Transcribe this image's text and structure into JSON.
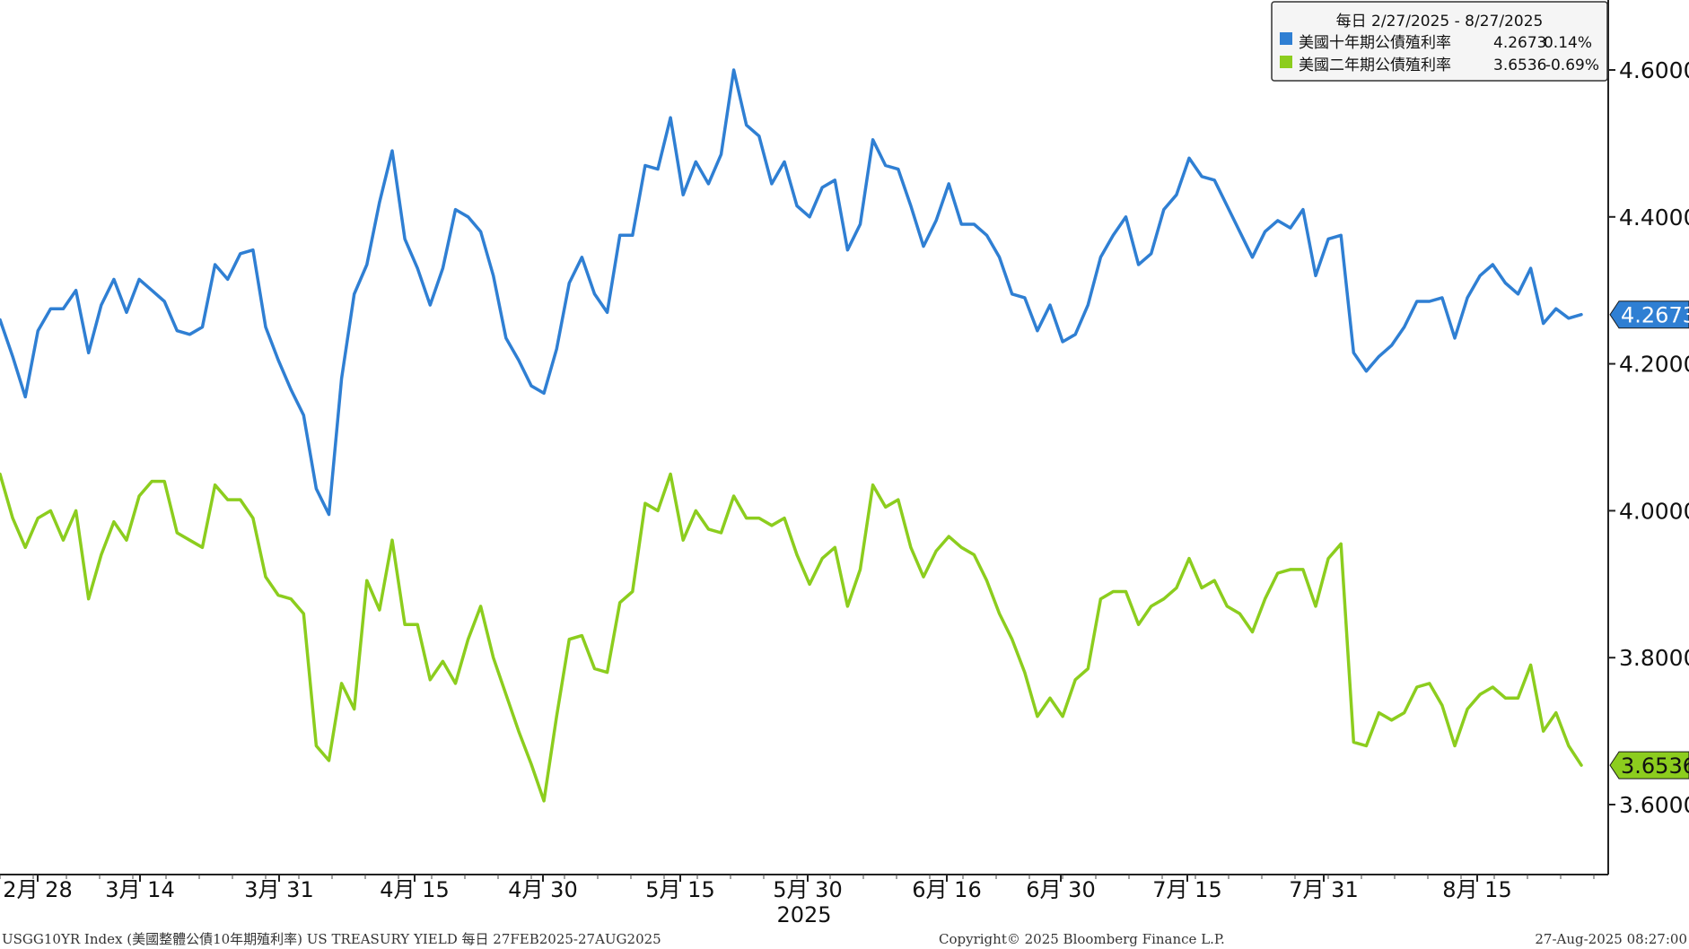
{
  "chart_data": {
    "type": "line",
    "title": "",
    "xlabel": "",
    "ylabel": "",
    "ylim": [
      3.5,
      4.72
    ],
    "y_ticks": [
      "3.6000",
      "3.8000",
      "4.0000",
      "4.2000",
      "4.4000",
      "4.6000"
    ],
    "x_ticks": [
      "2月 28",
      "3月 14",
      "3月 31",
      "4月 15",
      "4月 30",
      "5月 15",
      "5月 30",
      "6月 16",
      "6月 30",
      "7月 15",
      "7月 31",
      "8月 15"
    ],
    "x_year": "2025",
    "legend_position": "top-right",
    "series": [
      {
        "name": "美國十年期公債殖利率",
        "color": "#2f7fd3",
        "last_value": "4.2673",
        "change": "0.14%",
        "values": [
          4.26,
          4.21,
          4.155,
          4.245,
          4.275,
          4.275,
          4.3,
          4.215,
          4.28,
          4.315,
          4.27,
          4.315,
          4.3,
          4.285,
          4.245,
          4.24,
          4.25,
          4.335,
          4.315,
          4.35,
          4.355,
          4.25,
          4.205,
          4.165,
          4.13,
          4.03,
          3.995,
          4.18,
          4.295,
          4.335,
          4.42,
          4.49,
          4.37,
          4.33,
          4.28,
          4.33,
          4.41,
          4.4,
          4.38,
          4.32,
          4.235,
          4.205,
          4.17,
          4.16,
          4.22,
          4.31,
          4.345,
          4.295,
          4.27,
          4.375,
          4.375,
          4.47,
          4.465,
          4.535,
          4.43,
          4.475,
          4.445,
          4.485,
          4.6,
          4.525,
          4.51,
          4.445,
          4.475,
          4.415,
          4.4,
          4.44,
          4.45,
          4.355,
          4.39,
          4.505,
          4.47,
          4.465,
          4.415,
          4.36,
          4.395,
          4.445,
          4.39,
          4.39,
          4.375,
          4.345,
          4.295,
          4.29,
          4.245,
          4.28,
          4.23,
          4.24,
          4.28,
          4.345,
          4.375,
          4.4,
          4.335,
          4.35,
          4.41,
          4.43,
          4.48,
          4.455,
          4.45,
          4.415,
          4.38,
          4.345,
          4.38,
          4.395,
          4.385,
          4.41,
          4.32,
          4.37,
          4.375,
          4.215,
          4.19,
          4.21,
          4.225,
          4.25,
          4.285,
          4.285,
          4.29,
          4.235,
          4.29,
          4.32,
          4.335,
          4.31,
          4.295,
          4.33,
          4.255,
          4.275,
          4.262,
          4.267
        ]
      },
      {
        "name": "美國二年期公債殖利率",
        "color": "#8ccd1e",
        "last_value": "3.6536",
        "change": "-0.69%",
        "values": [
          4.05,
          3.99,
          3.95,
          3.99,
          4.0,
          3.96,
          4.0,
          3.88,
          3.94,
          3.985,
          3.96,
          4.02,
          4.04,
          4.04,
          3.97,
          3.96,
          3.95,
          4.035,
          4.015,
          4.015,
          3.99,
          3.91,
          3.885,
          3.88,
          3.86,
          3.68,
          3.66,
          3.765,
          3.73,
          3.905,
          3.865,
          3.96,
          3.845,
          3.845,
          3.77,
          3.795,
          3.765,
          3.825,
          3.87,
          3.8,
          3.75,
          3.7,
          3.655,
          3.605,
          3.72,
          3.825,
          3.83,
          3.785,
          3.78,
          3.875,
          3.89,
          4.01,
          4.0,
          4.05,
          3.96,
          4.0,
          3.975,
          3.97,
          4.02,
          3.99,
          3.99,
          3.98,
          3.99,
          3.94,
          3.9,
          3.935,
          3.95,
          3.87,
          3.92,
          4.035,
          4.005,
          4.015,
          3.95,
          3.91,
          3.945,
          3.965,
          3.95,
          3.94,
          3.905,
          3.86,
          3.825,
          3.78,
          3.72,
          3.745,
          3.72,
          3.77,
          3.785,
          3.88,
          3.89,
          3.89,
          3.845,
          3.87,
          3.88,
          3.895,
          3.935,
          3.895,
          3.905,
          3.87,
          3.86,
          3.835,
          3.88,
          3.915,
          3.92,
          3.92,
          3.87,
          3.935,
          3.955,
          3.685,
          3.68,
          3.725,
          3.715,
          3.725,
          3.76,
          3.765,
          3.735,
          3.68,
          3.73,
          3.75,
          3.76,
          3.745,
          3.745,
          3.79,
          3.7,
          3.725,
          3.68,
          3.6536
        ]
      }
    ]
  },
  "legend": {
    "header": "每日 2/27/2025 - 8/27/2025"
  },
  "footer": {
    "left": "USGG10YR Index (美國整體公債10年期殖利率) US TREASURY YIELD  每日 27FEB2025-27AUG2025",
    "center": "Copyright© 2025 Bloomberg Finance L.P.",
    "right": "27-Aug-2025 08:27:00"
  }
}
